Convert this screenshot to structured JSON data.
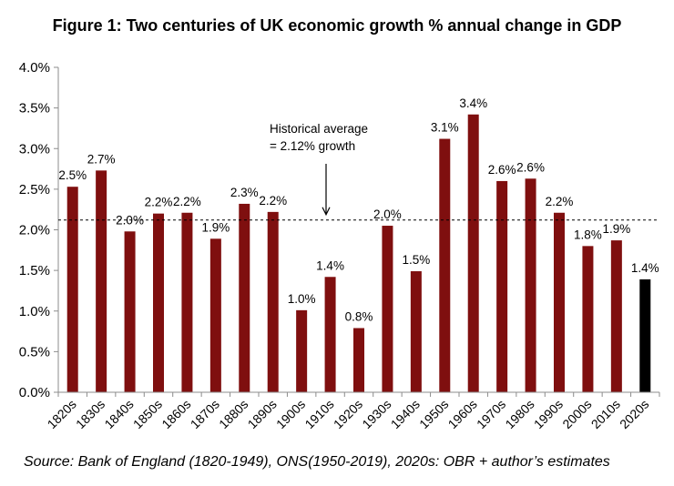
{
  "chart_data": {
    "type": "bar",
    "title": "Figure 1: Two centuries of UK economic growth % annual change in GDP",
    "xlabel": "",
    "ylabel": "",
    "ylim": [
      0,
      4.0
    ],
    "yticks": [
      "0.0%",
      "0.5%",
      "1.0%",
      "1.5%",
      "2.0%",
      "2.5%",
      "3.0%",
      "3.5%",
      "4.0%"
    ],
    "ytick_values": [
      0,
      0.5,
      1.0,
      1.5,
      2.0,
      2.5,
      3.0,
      3.5,
      4.0
    ],
    "categories": [
      "1820s",
      "1830s",
      "1840s",
      "1850s",
      "1860s",
      "1870s",
      "1880s",
      "1890s",
      "1900s",
      "1910s",
      "1920s",
      "1930s",
      "1940s",
      "1950s",
      "1960s",
      "1970s",
      "1980s",
      "1990s",
      "2000s",
      "2010s",
      "2020s"
    ],
    "values": [
      2.53,
      2.73,
      1.98,
      2.2,
      2.21,
      1.89,
      2.32,
      2.22,
      1.01,
      1.42,
      0.79,
      2.05,
      1.49,
      3.12,
      3.42,
      2.6,
      2.63,
      2.21,
      1.8,
      1.87,
      1.39
    ],
    "data_labels": [
      "2.5%",
      "2.7%",
      "2.0%",
      "2.2%",
      "2.2%",
      "1.9%",
      "2.3%",
      "2.2%",
      "1.0%",
      "1.4%",
      "0.8%",
      "2.0%",
      "1.5%",
      "3.1%",
      "3.4%",
      "2.6%",
      "2.6%",
      "2.2%",
      "1.8%",
      "1.9%",
      "1.4%"
    ],
    "bar_colors": [
      "#7f0f0f",
      "#7f0f0f",
      "#7f0f0f",
      "#7f0f0f",
      "#7f0f0f",
      "#7f0f0f",
      "#7f0f0f",
      "#7f0f0f",
      "#7f0f0f",
      "#7f0f0f",
      "#7f0f0f",
      "#7f0f0f",
      "#7f0f0f",
      "#7f0f0f",
      "#7f0f0f",
      "#7f0f0f",
      "#7f0f0f",
      "#7f0f0f",
      "#7f0f0f",
      "#7f0f0f",
      "#000000"
    ],
    "reference_line": {
      "value": 2.12,
      "style": "dashed",
      "annotation_line1": "Historical average",
      "annotation_line2": "= 2.12% growth"
    },
    "source": "Source: Bank of England (1820-1949), ONS(1950-2019), 2020s: OBR + author’s estimates"
  }
}
